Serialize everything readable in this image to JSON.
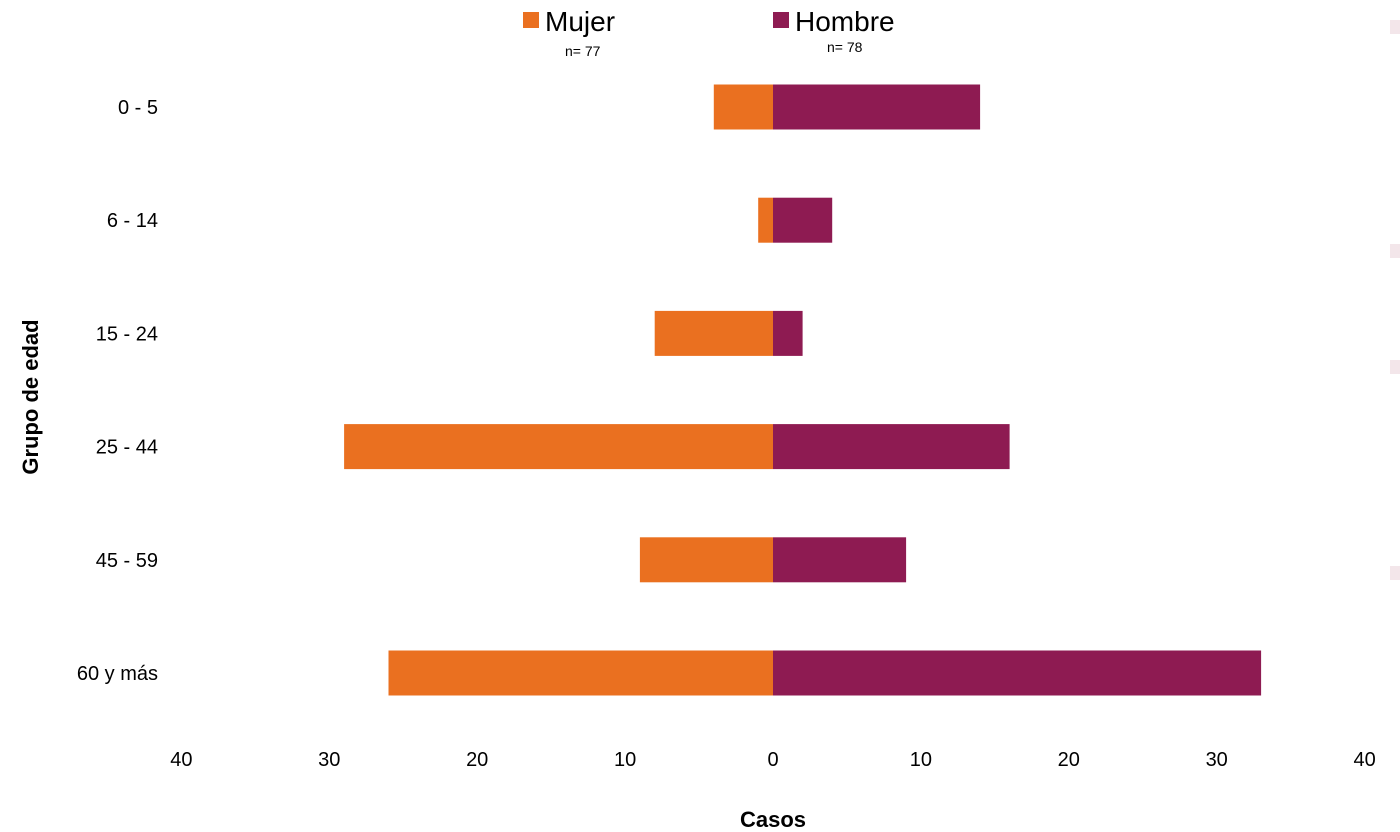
{
  "chart_data": {
    "type": "bar",
    "orientation": "horizontal-diverging",
    "categories": [
      "0 - 5",
      "6 - 14",
      "15 - 24",
      "25 - 44",
      "45 - 59",
      "60 y más"
    ],
    "series": [
      {
        "name": "Mujer",
        "n_label": "n= 77",
        "color": "#EA7020",
        "side": "left",
        "values": [
          4,
          1,
          8,
          29,
          9,
          26
        ]
      },
      {
        "name": "Hombre",
        "n_label": "n= 78",
        "color": "#8E1B52",
        "side": "right",
        "values": [
          14,
          4,
          2,
          16,
          9,
          33
        ]
      }
    ],
    "xlabel": "Casos",
    "ylabel": "Grupo de edad",
    "xlim": [
      -40,
      40
    ],
    "xticks": [
      -40,
      -30,
      -20,
      -10,
      0,
      10,
      20,
      30,
      40
    ],
    "xtick_labels": [
      "40",
      "30",
      "20",
      "10",
      "0",
      "10",
      "20",
      "30",
      "40"
    ],
    "grid": false,
    "legend_position": "top-center"
  }
}
